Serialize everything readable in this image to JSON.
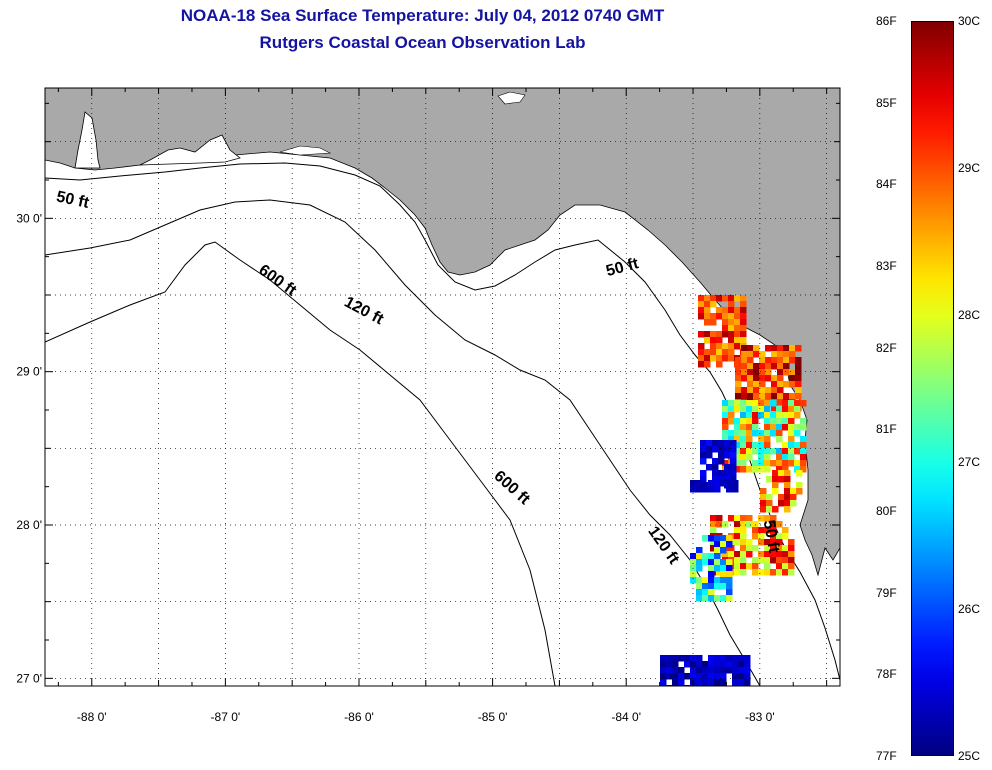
{
  "title": {
    "line1": "NOAA-18 Sea Surface Temperature:  July 04, 2012 0740 GMT",
    "line2": "Rutgers Coastal Ocean Observation Lab"
  },
  "map": {
    "lon_ticks": [
      "-88 0'",
      "-87 0'",
      "-86 0'",
      "-85 0'",
      "-84 0'",
      "-83 0'"
    ],
    "lat_ticks": [
      "30 0'",
      "29 0'",
      "28 0'",
      "27 0'"
    ],
    "lon_range": [
      -88.35,
      -82.4
    ],
    "lat_range": [
      26.95,
      30.85
    ],
    "land_color": "#a9a9a9",
    "water_color": "#ffffff",
    "grid": "dotted",
    "isobath_labels": [
      {
        "text": "50 ft",
        "lon": -88.15,
        "lat": 30.09
      },
      {
        "text": "600 ft",
        "lon": -86.63,
        "lat": 29.57
      },
      {
        "text": "120 ft",
        "lon": -85.98,
        "lat": 29.37
      },
      {
        "text": "50 ft",
        "lon": -84.02,
        "lat": 29.65
      },
      {
        "text": "600 ft",
        "lon": -84.88,
        "lat": 28.22
      },
      {
        "text": "120 ft",
        "lon": -83.75,
        "lat": 27.85
      },
      {
        "text": "50 ft",
        "lon": -82.95,
        "lat": 27.92
      }
    ]
  },
  "colorbar": {
    "f_labels": [
      "86F",
      "85F",
      "84F",
      "83F",
      "82F",
      "81F",
      "80F",
      "79F",
      "78F",
      "77F"
    ],
    "c_labels": [
      "30C",
      "29C",
      "28C",
      "27C",
      "26C",
      "25C"
    ],
    "range_c": [
      25,
      30
    ],
    "range_f": [
      77,
      86
    ],
    "colormap": "jet"
  }
}
